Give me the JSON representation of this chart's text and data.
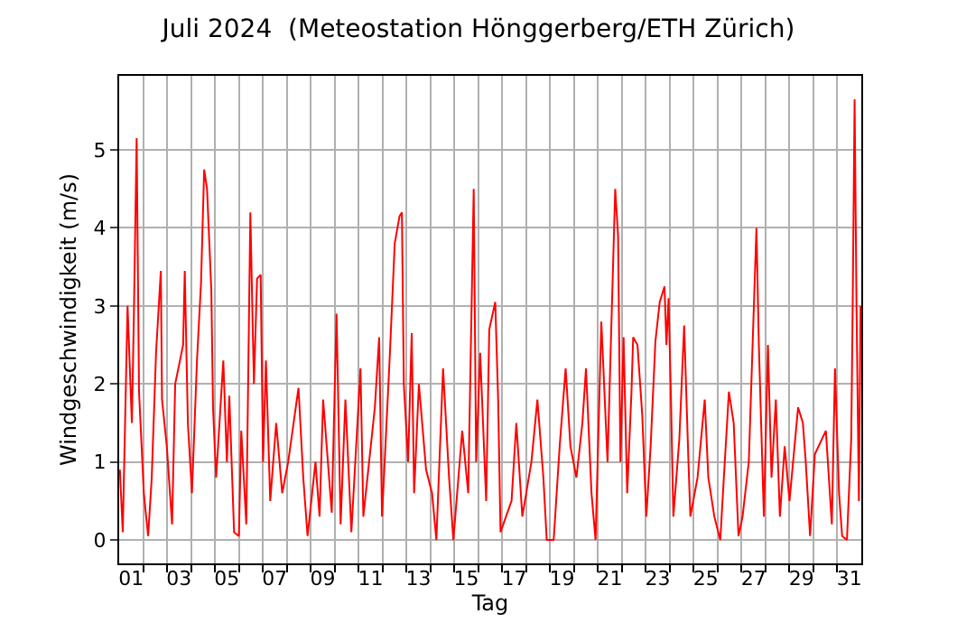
{
  "chart_data": {
    "type": "line",
    "title": "Juli 2024  (Meteostation Hönggerberg/ETH Zürich)",
    "xlabel": "Tag",
    "ylabel": "Windgeschwindigkeit (m/s)",
    "xlim": [
      1,
      32
    ],
    "ylim": [
      -0.3,
      5.95
    ],
    "xticks": [
      {
        "value": 1.5,
        "label": "01"
      },
      {
        "value": 3.5,
        "label": "03"
      },
      {
        "value": 5.5,
        "label": "05"
      },
      {
        "value": 7.5,
        "label": "07"
      },
      {
        "value": 9.5,
        "label": "09"
      },
      {
        "value": 11.5,
        "label": "11"
      },
      {
        "value": 13.5,
        "label": "13"
      },
      {
        "value": 15.5,
        "label": "15"
      },
      {
        "value": 17.5,
        "label": "17"
      },
      {
        "value": 19.5,
        "label": "19"
      },
      {
        "value": 21.5,
        "label": "21"
      },
      {
        "value": 23.5,
        "label": "23"
      },
      {
        "value": 25.5,
        "label": "25"
      },
      {
        "value": 27.5,
        "label": "27"
      },
      {
        "value": 29.5,
        "label": "29"
      },
      {
        "value": 31.5,
        "label": "31"
      },
      {
        "value": 2,
        "label": null
      },
      {
        "value": 3,
        "label": null
      },
      {
        "value": 4,
        "label": null
      },
      {
        "value": 5,
        "label": null
      },
      {
        "value": 6,
        "label": null
      },
      {
        "value": 7,
        "label": null
      },
      {
        "value": 8,
        "label": null
      },
      {
        "value": 9,
        "label": null
      },
      {
        "value": 10,
        "label": null
      },
      {
        "value": 11,
        "label": null
      },
      {
        "value": 12,
        "label": null
      },
      {
        "value": 13,
        "label": null
      },
      {
        "value": 14,
        "label": null
      },
      {
        "value": 15,
        "label": null
      },
      {
        "value": 16,
        "label": null
      },
      {
        "value": 17,
        "label": null
      },
      {
        "value": 18,
        "label": null
      },
      {
        "value": 19,
        "label": null
      },
      {
        "value": 20,
        "label": null
      },
      {
        "value": 21,
        "label": null
      },
      {
        "value": 22,
        "label": null
      },
      {
        "value": 23,
        "label": null
      },
      {
        "value": 24,
        "label": null
      },
      {
        "value": 25,
        "label": null
      },
      {
        "value": 26,
        "label": null
      },
      {
        "value": 27,
        "label": null
      },
      {
        "value": 28,
        "label": null
      },
      {
        "value": 29,
        "label": null
      },
      {
        "value": 30,
        "label": null
      },
      {
        "value": 31,
        "label": null
      }
    ],
    "yticks": [
      0,
      1,
      2,
      3,
      4,
      5
    ],
    "grid": true,
    "line_style": "solid",
    "x": [
      1.03,
      1.15,
      1.35,
      1.53,
      1.61,
      1.73,
      1.83,
      2.03,
      2.21,
      2.36,
      2.54,
      2.74,
      2.79,
      2.99,
      3.21,
      3.34,
      3.67,
      3.74,
      3.87,
      4.04,
      4.25,
      4.42,
      4.55,
      4.67,
      4.85,
      4.92,
      5.05,
      5.35,
      5.5,
      5.6,
      5.8,
      6.0,
      6.1,
      6.31,
      6.48,
      6.56,
      6.63,
      6.76,
      6.91,
      7.01,
      7.13,
      7.31,
      7.56,
      7.81,
      8.06,
      8.49,
      8.69,
      8.87,
      9.2,
      9.37,
      9.52,
      9.88,
      10.08,
      10.25,
      10.45,
      10.7,
      11.08,
      11.2,
      11.68,
      11.86,
      11.98,
      12.31,
      12.51,
      12.71,
      12.81,
      12.89,
      13.07,
      13.22,
      13.32,
      13.52,
      13.82,
      14.07,
      14.25,
      14.53,
      14.78,
      14.96,
      15.33,
      15.58,
      15.81,
      15.91,
      16.08,
      16.33,
      16.46,
      16.71,
      16.83,
      16.93,
      17.39,
      17.59,
      17.84,
      18.22,
      18.47,
      18.72,
      18.86,
      19.15,
      19.4,
      19.65,
      19.85,
      20.1,
      20.35,
      20.5,
      20.73,
      20.9,
      21.14,
      21.4,
      21.72,
      21.84,
      21.94,
      22.07,
      22.22,
      22.4,
      22.47,
      22.65,
      22.85,
      23.02,
      23.2,
      23.4,
      23.58,
      23.78,
      23.86,
      23.95,
      24.05,
      24.15,
      24.4,
      24.6,
      24.78,
      24.86,
      25.16,
      25.46,
      25.61,
      25.86,
      26.11,
      26.24,
      26.47,
      26.67,
      26.87,
      27.04,
      27.3,
      27.47,
      27.62,
      27.72,
      27.93,
      28.1,
      28.25,
      28.43,
      28.6,
      28.8,
      29.0,
      29.36,
      29.56,
      29.68,
      29.86,
      30.06,
      30.52,
      30.77,
      30.9,
      31.07,
      31.2,
      31.4,
      31.58,
      31.64,
      31.72,
      31.8,
      31.9,
      31.97
    ],
    "series": [
      {
        "color": "#ff0000",
        "values": [
          0.9,
          0.1,
          3.0,
          1.5,
          2.8,
          5.15,
          1.9,
          0.6,
          0.05,
          0.8,
          2.4,
          3.45,
          1.8,
          1.2,
          0.2,
          2.0,
          2.5,
          3.45,
          1.5,
          0.6,
          2.3,
          3.3,
          4.75,
          4.5,
          3.2,
          1.7,
          0.8,
          2.3,
          1.0,
          1.85,
          0.1,
          0.05,
          1.4,
          0.2,
          4.2,
          3.0,
          2.0,
          3.35,
          3.4,
          1.0,
          2.3,
          0.5,
          1.5,
          0.6,
          1.0,
          1.95,
          0.8,
          0.05,
          1.0,
          0.3,
          1.8,
          0.35,
          2.9,
          0.2,
          1.8,
          0.1,
          2.2,
          0.3,
          1.7,
          2.6,
          0.3,
          2.4,
          3.8,
          4.15,
          4.2,
          2.0,
          1.0,
          2.65,
          0.6,
          2.0,
          0.9,
          0.6,
          0.0,
          2.2,
          0.8,
          0.0,
          1.4,
          0.6,
          4.5,
          1.0,
          2.4,
          0.5,
          2.7,
          3.05,
          1.8,
          0.1,
          0.5,
          1.5,
          0.3,
          1.0,
          1.8,
          0.8,
          0.0,
          0.0,
          1.2,
          2.2,
          1.2,
          0.8,
          1.5,
          2.2,
          0.6,
          0.0,
          2.8,
          1.0,
          4.5,
          3.9,
          1.0,
          2.6,
          0.6,
          1.9,
          2.6,
          2.5,
          1.6,
          0.3,
          1.2,
          2.55,
          3.05,
          3.25,
          2.5,
          3.1,
          1.8,
          0.3,
          1.3,
          2.75,
          1.0,
          0.3,
          0.8,
          1.8,
          0.8,
          0.3,
          0.0,
          0.7,
          1.9,
          1.5,
          0.05,
          0.3,
          1.0,
          2.6,
          4.0,
          2.5,
          0.3,
          2.5,
          0.8,
          1.8,
          0.3,
          1.2,
          0.5,
          1.7,
          1.5,
          1.0,
          0.05,
          1.1,
          1.4,
          0.2,
          2.2,
          0.6,
          0.05,
          0.0,
          1.3,
          3.0,
          5.65,
          3.0,
          0.5,
          3.0
        ]
      }
    ]
  }
}
